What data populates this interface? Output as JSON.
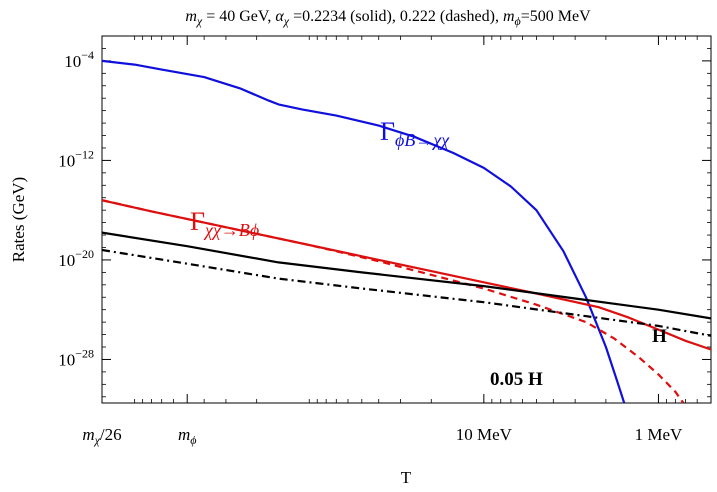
{
  "chart_data": {
    "type": "line",
    "title_parts": [
      {
        "text": "m",
        "style": "italic"
      },
      {
        "text": "χ",
        "style": "italic-sub"
      },
      {
        "text": " = 40 GeV, ",
        "style": "normal"
      },
      {
        "text": "α",
        "style": "italic"
      },
      {
        "text": "χ",
        "style": "italic-sub"
      },
      {
        "text": " =0.2234 (solid), 0.222 (dashed), ",
        "style": "normal"
      },
      {
        "text": "m",
        "style": "italic"
      },
      {
        "text": "ϕ",
        "style": "italic-sub"
      },
      {
        "text": "=500 MeV",
        "style": "normal"
      }
    ],
    "xlabel": "T",
    "ylabel": "Rates  (GeV)",
    "x_scale": "log, decreasing",
    "y_scale": "log",
    "xlim": [
      1538,
      0.5
    ],
    "ylim": [
      -31.5,
      -2
    ],
    "x_ticks": [
      {
        "value": 1538,
        "label_parts": [
          {
            "text": "m",
            "style": "italic"
          },
          {
            "text": "χ",
            "style": "italic-sub"
          },
          {
            "text": "/26",
            "style": "normal"
          }
        ]
      },
      {
        "value": 500,
        "label_parts": [
          {
            "text": "m",
            "style": "italic"
          },
          {
            "text": "ϕ",
            "style": "italic-sub"
          }
        ]
      },
      {
        "value": 10,
        "label_parts": [
          {
            "text": "10 MeV",
            "style": "normal"
          }
        ]
      },
      {
        "value": 1,
        "label_parts": [
          {
            "text": "1 MeV",
            "style": "normal"
          }
        ]
      }
    ],
    "y_ticks": [
      {
        "value": -4,
        "base": "10",
        "exp": "−4"
      },
      {
        "value": -12,
        "base": "10",
        "exp": "−12"
      },
      {
        "value": -20,
        "base": "10",
        "exp": "−20"
      },
      {
        "value": -28,
        "base": "10",
        "exp": "−28"
      }
    ],
    "grid": false,
    "series": [
      {
        "key": "gamma_phiB_chichi",
        "color": "#1010dd",
        "dash": "solid",
        "points": [
          [
            1538,
            -4.0
          ],
          [
            1000,
            -4.3
          ],
          [
            700,
            -4.7
          ],
          [
            400,
            -5.3
          ],
          [
            250,
            -6.2
          ],
          [
            170,
            -7.2
          ],
          [
            150,
            -7.5
          ],
          [
            110,
            -7.9
          ],
          [
            70,
            -8.4
          ],
          [
            40,
            -9.2
          ],
          [
            25,
            -10.1
          ],
          [
            15,
            -11.4
          ],
          [
            10,
            -12.6
          ],
          [
            7,
            -14.1
          ],
          [
            5,
            -16.0
          ],
          [
            3.5,
            -19.3
          ],
          [
            2.6,
            -23.0
          ],
          [
            2.0,
            -27.0
          ],
          [
            1.7,
            -30.0
          ],
          [
            1.57,
            -31.5
          ]
        ]
      },
      {
        "key": "gamma_chichi_Bphi_solid",
        "color": "#dd1010",
        "dash": "solid",
        "points": [
          [
            1538,
            -15.2
          ],
          [
            800,
            -16.1
          ],
          [
            400,
            -17.0
          ],
          [
            100,
            -18.8
          ],
          [
            40,
            -20.0
          ],
          [
            10,
            -21.8
          ],
          [
            5,
            -22.7
          ],
          [
            2.2,
            -23.8
          ],
          [
            1.5,
            -24.6
          ],
          [
            1.0,
            -25.6
          ],
          [
            0.7,
            -26.5
          ],
          [
            0.5,
            -27.2
          ]
        ]
      },
      {
        "key": "gamma_chichi_Bphi_dashed",
        "color": "#dd1010",
        "dash": "dashed",
        "points": [
          [
            1538,
            -15.2
          ],
          [
            800,
            -16.1
          ],
          [
            400,
            -17.0
          ],
          [
            100,
            -18.8
          ],
          [
            40,
            -20.1
          ],
          [
            10,
            -22.3
          ],
          [
            5,
            -23.6
          ],
          [
            2.6,
            -25.0
          ],
          [
            1.8,
            -26.3
          ],
          [
            1.3,
            -27.8
          ],
          [
            1.0,
            -29.2
          ],
          [
            0.8,
            -30.6
          ],
          [
            0.72,
            -31.5
          ]
        ]
      },
      {
        "key": "H",
        "color": "#000000",
        "dash": "solid",
        "points": [
          [
            1538,
            -17.8
          ],
          [
            500,
            -18.9
          ],
          [
            150,
            -20.2
          ],
          [
            50,
            -21.0
          ],
          [
            10,
            -22.1
          ],
          [
            3,
            -23.1
          ],
          [
            1,
            -24.0
          ],
          [
            0.5,
            -24.7
          ]
        ]
      },
      {
        "key": "H005",
        "color": "#000000",
        "dash": "dashdot",
        "points": [
          [
            1538,
            -19.2
          ],
          [
            500,
            -20.3
          ],
          [
            150,
            -21.5
          ],
          [
            50,
            -22.3
          ],
          [
            10,
            -23.4
          ],
          [
            3,
            -24.4
          ],
          [
            1,
            -25.3
          ],
          [
            0.5,
            -26.1
          ]
        ]
      }
    ],
    "annotations": [
      {
        "key": "gamma_phiB",
        "color": "#1010dd",
        "main": "Γ",
        "sub": "ϕB→χχ"
      },
      {
        "key": "gamma_chichi",
        "color": "#dd1010",
        "main": "Γ",
        "sub": "χχ→Bϕ"
      },
      {
        "key": "H",
        "color": "#000000",
        "text": "H"
      },
      {
        "key": "H005",
        "color": "#000000",
        "text": "0.05 H"
      }
    ]
  }
}
